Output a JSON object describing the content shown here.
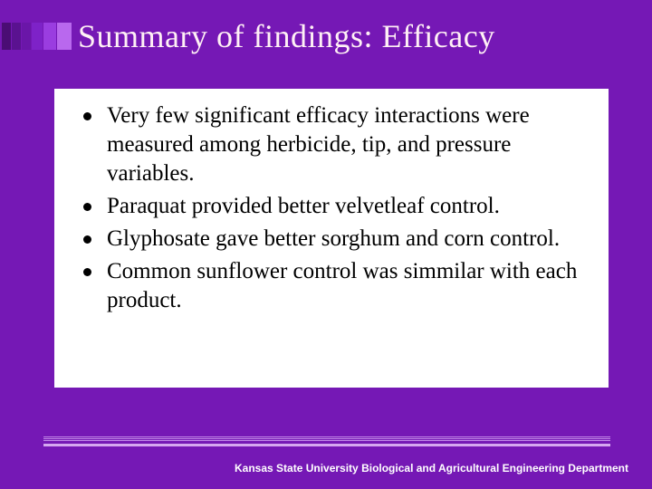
{
  "slide": {
    "title": "Summary of findings: Efficacy",
    "title_color": "#fff0f5",
    "title_fontsize": 36,
    "background_color": "#7518b5",
    "content_background": "#ffffff",
    "bullets": [
      "Very few significant efficacy interactions were measured among herbicide, tip, and pressure variables.",
      "Paraquat provided better velvetleaf control.",
      "Glyphosate gave better sorghum and corn control.",
      "Common sunflower control was simmilar with each product."
    ],
    "bullet_fontsize": 25,
    "bullet_color": "#000000",
    "deco_bar_colors": [
      "#4a0d74",
      "#5a1290",
      "#6a16a8",
      "#7e22c8",
      "#9a3de0",
      "#b968ee"
    ],
    "bottom_line_color": "#c38be8",
    "footer": "Kansas State University Biological and Agricultural Engineering Department",
    "footer_color": "#ffffff",
    "footer_fontsize": 12
  }
}
